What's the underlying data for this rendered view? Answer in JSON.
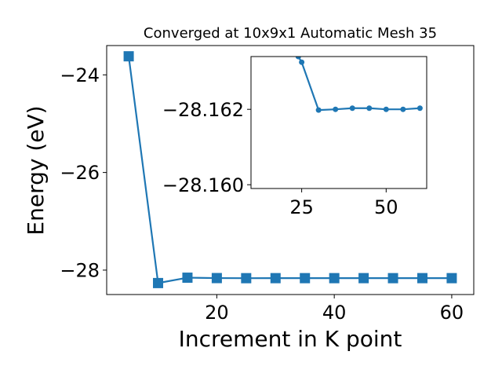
{
  "chart_data": [
    {
      "type": "line",
      "title": "Converged at 10x9x1 Automatic Mesh 35",
      "xlabel": "Increment in K point",
      "ylabel": "Energy (eV)",
      "xlim": [
        1.25,
        63.75
      ],
      "ylim": [
        -28.5,
        -23.4
      ],
      "xticks": [
        20,
        40,
        60
      ],
      "yticks": [
        -28,
        -26,
        -24
      ],
      "xtick_labels": [
        "20",
        "40",
        "60"
      ],
      "ytick_labels": [
        "−28",
        "−26",
        "−24"
      ],
      "marker": "square",
      "color": "#1f77b4",
      "series": [
        {
          "x": [
            5,
            10,
            15,
            20,
            25,
            30,
            35,
            40,
            45,
            50,
            55,
            60
          ],
          "y": [
            -23.62,
            -28.265,
            -28.155,
            -28.163,
            -28.165,
            -28.1644,
            -28.1645,
            -28.1645,
            -28.1642,
            -28.1647,
            -28.1642,
            -28.1645
          ]
        }
      ]
    },
    {
      "type": "line",
      "inset": true,
      "xlim": [
        10,
        62
      ],
      "ylim": [
        -28.1599,
        -28.1634
      ],
      "xticks": [
        25,
        50
      ],
      "yticks": [
        -28.162,
        -28.16
      ],
      "xtick_labels": [
        "25",
        "50"
      ],
      "ytick_labels": [
        "−28.162",
        "−28.160"
      ],
      "marker": "circle",
      "color": "#1f77b4",
      "series": [
        {
          "x": [
            24,
            25,
            30,
            35,
            40,
            45,
            50,
            55,
            60
          ],
          "y": [
            -28.1634,
            -28.16325,
            -28.16198,
            -28.162,
            -28.16203,
            -28.16203,
            -28.162,
            -28.162,
            -28.16203
          ]
        }
      ]
    }
  ]
}
